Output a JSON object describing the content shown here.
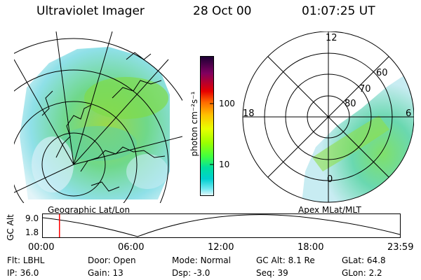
{
  "header": {
    "title": "Ultraviolet Imager",
    "date": "28 Oct 00",
    "time": "01:07:25 UT"
  },
  "left_panel": {
    "caption": "Geographic Lat/Lon"
  },
  "right_panel": {
    "caption": "Apex MLat/MLT",
    "mlt_labels": [
      "12",
      "18",
      "6",
      "0"
    ],
    "mlat_labels": [
      "60",
      "70",
      "80"
    ]
  },
  "colorbar": {
    "unit_label": "photon cm⁻²s⁻¹",
    "ticks": [
      "100",
      "10"
    ],
    "colors": [
      "#1a0033",
      "#3b0066",
      "#800060",
      "#b0003a",
      "#e60000",
      "#ff6a00",
      "#ffc000",
      "#e8ff00",
      "#9cff00",
      "#40ff40",
      "#00e0a0",
      "#00d0d0",
      "#70e8f0",
      "#e8f8fb"
    ]
  },
  "timeline": {
    "axis_label": "GC Alt",
    "y_ticks": [
      "9.0",
      "1.8"
    ],
    "x_ticks": [
      "00:00",
      "06:00",
      "12:00",
      "18:00",
      "23:59"
    ],
    "marker_time_hours": 1.12,
    "marker_color": "#ff0000"
  },
  "info": {
    "row1": [
      {
        "label": "Flt:",
        "value": "LBHL"
      },
      {
        "label": "Door:",
        "value": "Open"
      },
      {
        "label": "Mode:",
        "value": "Normal"
      },
      {
        "label": "GC Alt:",
        "value": "8.1 Re"
      },
      {
        "label": "GLat:",
        "value": "64.8"
      }
    ],
    "row2": [
      {
        "label": "IP:",
        "value": "36.0"
      },
      {
        "label": "Gain:",
        "value": "13"
      },
      {
        "label": "Dsp:",
        "value": "-3.0"
      },
      {
        "label": "Seq:",
        "value": "39"
      },
      {
        "label": "GLon:",
        "value": "2.2"
      }
    ]
  }
}
